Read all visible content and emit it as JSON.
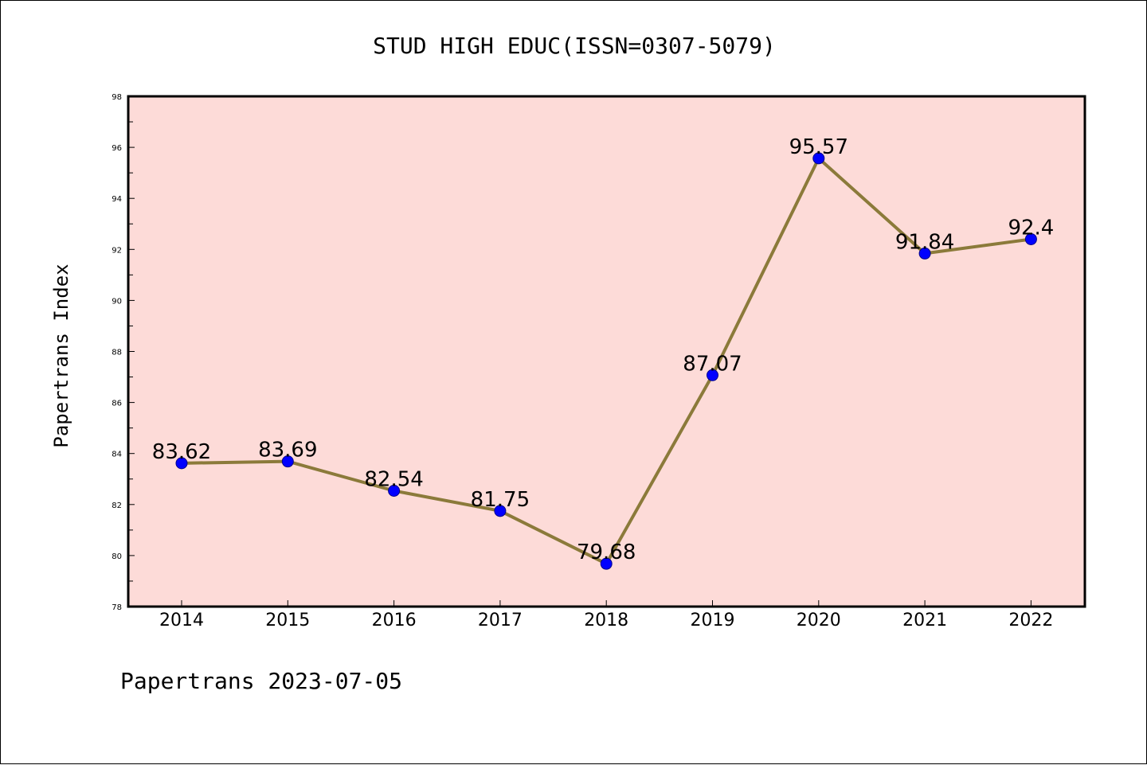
{
  "chart_data": {
    "type": "line",
    "title": "STUD HIGH EDUC(ISSN=0307-5079)",
    "xlabel": "",
    "ylabel": "Papertrans Index",
    "categories": [
      "2014",
      "2015",
      "2016",
      "2017",
      "2018",
      "2019",
      "2020",
      "2021",
      "2022"
    ],
    "series": [
      {
        "values": [
          83.62,
          83.69,
          82.54,
          81.75,
          79.68,
          87.07,
          95.57,
          91.84,
          92.4
        ],
        "labels": [
          "83.62",
          "83.69",
          "82.54",
          "81.75",
          "79.68",
          "87.07",
          "95.57",
          "91.84",
          "92.4"
        ]
      }
    ],
    "ylim": [
      78,
      98
    ],
    "yticks": [
      78,
      80,
      82,
      84,
      86,
      88,
      90,
      92,
      94,
      96,
      98
    ],
    "grid": false,
    "legend": "none",
    "colors": {
      "plot_background": "#fddbd8",
      "line": "#8b7a3a",
      "marker": "#0000ff"
    }
  },
  "footer": "Papertrans 2023-07-05"
}
